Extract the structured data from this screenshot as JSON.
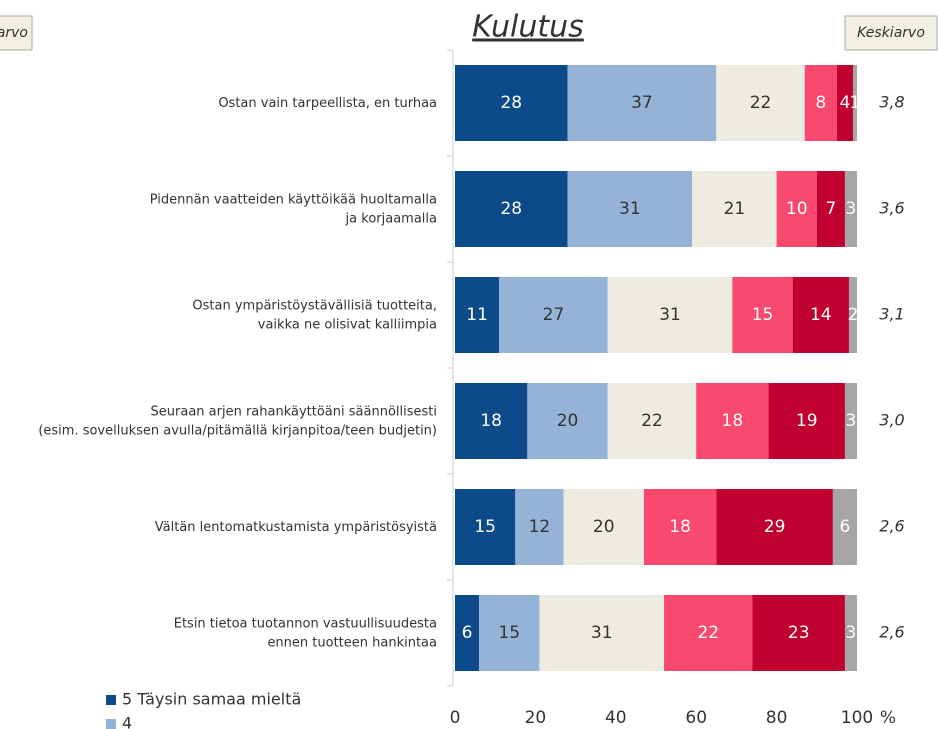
{
  "chart_data": {
    "type": "stacked_bar_horizontal",
    "title": "Kulutus",
    "average_header": "Keskiarvo",
    "left_header": "arvo",
    "x_label": "%",
    "categories": [
      "Ostan vain tarpeellista, en turhaa",
      "Pidennän vaatteiden käyttöikää huoltamalla\nja korjaamalla",
      "Ostan ympäristöystävällisiä tuotteita,\nvaikka ne olisivat kalliimpia",
      "Seuraan arjen rahankäyttöäni säännöllisesti\n(esim. sovelluksen avulla/pitämällä kirjanpitoa/teen budjetin)",
      "Vältän lentomatkustamista ympäristösyistä",
      "Etsin tietoa tuotannon vastuullisuudesta\nennen tuotteen hankintaa"
    ],
    "series": [
      {
        "name": "5 Täysin samaa mieltä",
        "color": "#0d4a8a",
        "label_color": "#ffffff",
        "values": [
          28,
          28,
          11,
          18,
          15,
          6
        ]
      },
      {
        "name": "4",
        "color": "#95b3d7",
        "label_color": "#333333",
        "values": [
          37,
          31,
          27,
          20,
          12,
          15
        ]
      },
      {
        "color": "#eeebe0",
        "label_color": "#333333",
        "values": [
          22,
          21,
          31,
          22,
          20,
          31
        ]
      },
      {
        "color": "#f9496e",
        "label_color": "#ffffff",
        "values": [
          8,
          10,
          15,
          18,
          18,
          22
        ]
      },
      {
        "color": "#c0002f",
        "label_color": "#ffffff",
        "values": [
          4,
          7,
          14,
          19,
          29,
          23
        ]
      },
      {
        "color": "#a6a6a6",
        "label_color": "#ffffff",
        "values": [
          1,
          3,
          2,
          3,
          6,
          3
        ]
      }
    ],
    "averages": {
      "values": [
        3.8,
        3.6,
        3.1,
        3.0,
        2.6,
        2.6
      ],
      "value_labels": [
        "3,8",
        "3,6",
        "3,1",
        "3,0",
        "2,6",
        "2,6"
      ]
    },
    "xlim": [
      0,
      100
    ],
    "xticks": [
      0,
      20,
      40,
      60,
      80,
      100
    ]
  }
}
